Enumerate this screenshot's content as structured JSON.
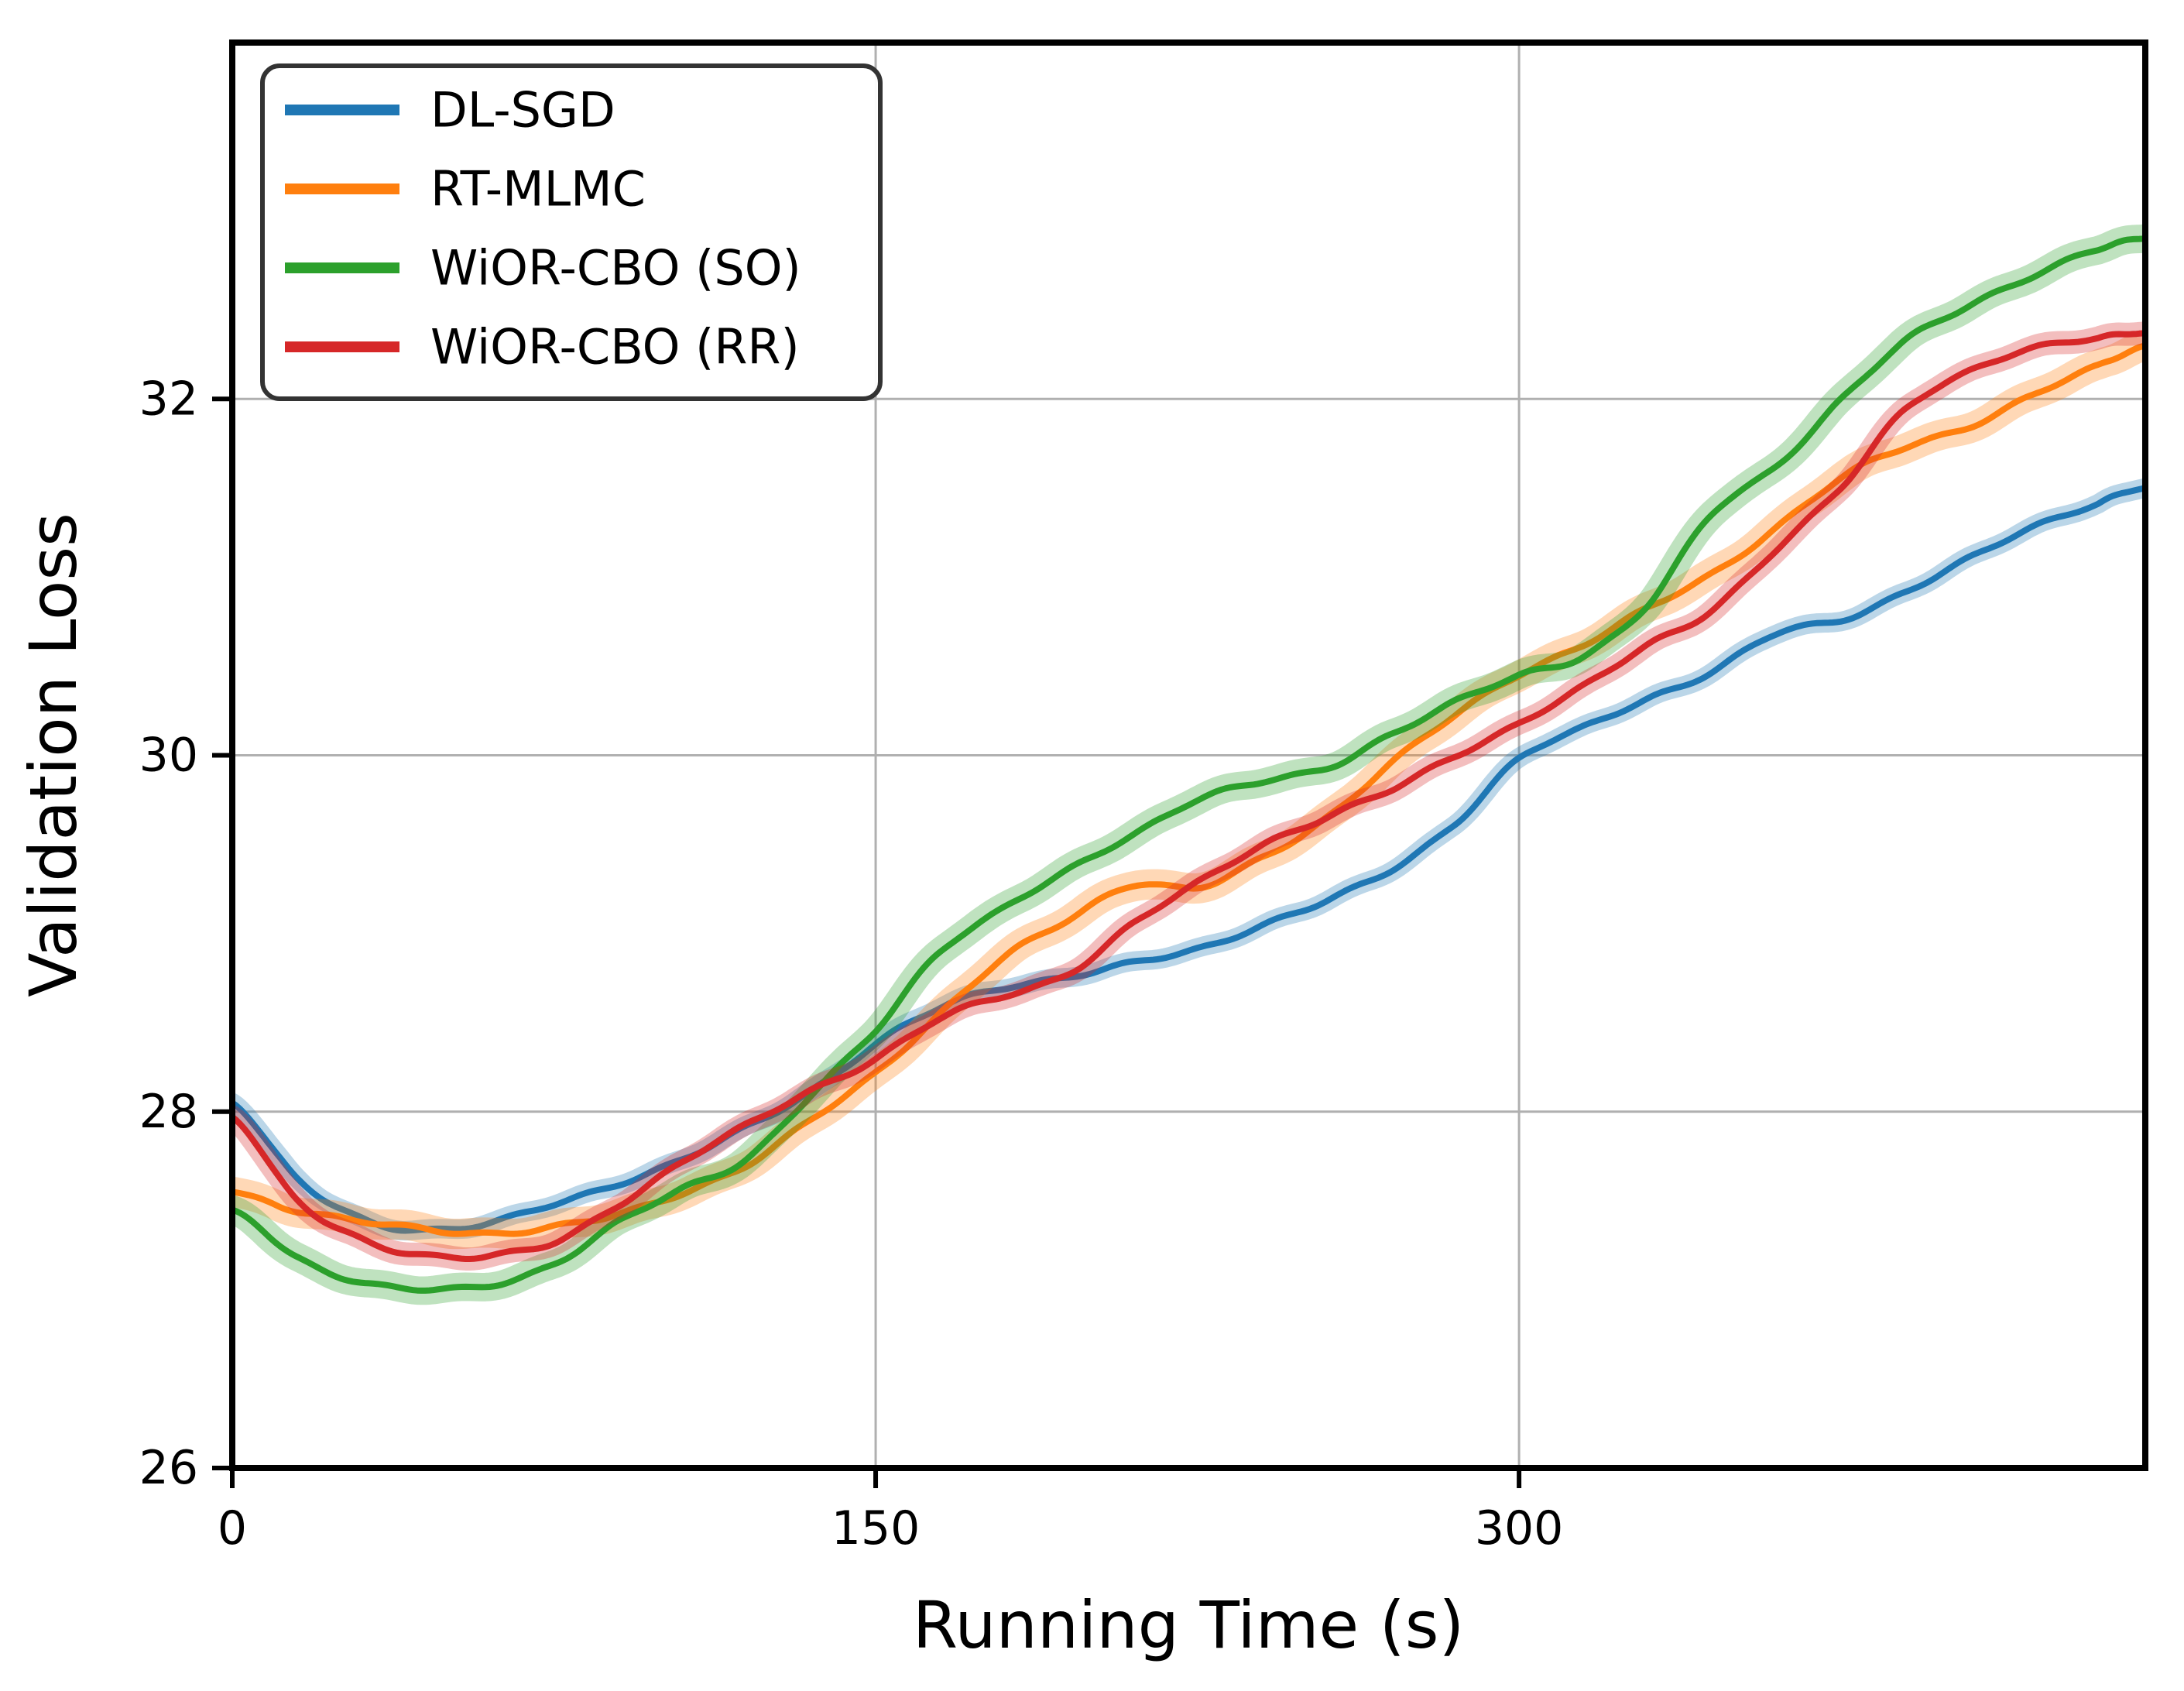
{
  "page": {
    "background": "#ffffff",
    "border_color": "#000000",
    "grid_color": "#b0b0b0"
  },
  "chart_data": {
    "type": "line",
    "title": "",
    "xlabel": "Running Time (s)",
    "ylabel": "Validation Loss",
    "xlim": [
      0,
      446
    ],
    "ylim": [
      26,
      34
    ],
    "xticks": {
      "values": [
        0,
        150,
        300
      ],
      "labels": [
        "0",
        "150",
        "300"
      ]
    },
    "yticks": {
      "values": [
        26,
        28,
        30,
        32
      ],
      "labels": [
        "26",
        "28",
        "30",
        "32"
      ]
    },
    "grid": {
      "show": true,
      "color": "#b0b0b0",
      "x_values": [
        150,
        300
      ],
      "y_values": [
        28,
        30,
        32
      ]
    },
    "legend": {
      "position": "upper left",
      "border_color": "#333333",
      "background": "#ffffff"
    },
    "x": [
      0,
      15,
      30,
      45,
      60,
      75,
      90,
      105,
      120,
      135,
      150,
      165,
      180,
      195,
      210,
      225,
      240,
      255,
      270,
      285,
      300,
      315,
      330,
      345,
      360,
      375,
      390,
      405,
      420,
      435,
      446
    ],
    "series": [
      {
        "name": "DL-SGD",
        "color": "#1f77b4",
        "band_halfwidth": 0.055,
        "values": [
          28.05,
          27.62,
          27.4,
          27.34,
          27.37,
          27.48,
          27.6,
          27.73,
          27.91,
          28.12,
          28.38,
          28.58,
          28.7,
          28.76,
          28.83,
          28.91,
          29.05,
          29.18,
          29.35,
          29.62,
          29.98,
          30.15,
          30.32,
          30.47,
          30.68,
          30.76,
          30.92,
          31.1,
          31.28,
          31.42,
          31.5
        ]
      },
      {
        "name": "RT-MLMC",
        "color": "#ff7f0e",
        "band_halfwidth": 0.085,
        "values": [
          27.55,
          27.45,
          27.38,
          27.34,
          27.32,
          27.35,
          27.42,
          27.55,
          27.7,
          27.95,
          28.22,
          28.55,
          28.86,
          29.08,
          29.28,
          29.25,
          29.42,
          29.65,
          29.95,
          30.22,
          30.46,
          30.62,
          30.82,
          31.02,
          31.28,
          31.55,
          31.73,
          31.85,
          32.02,
          32.18,
          32.3
        ]
      },
      {
        "name": "WiOR-CBO (SO)",
        "color": "#2ca02c",
        "band_halfwidth": 0.08,
        "values": [
          27.45,
          27.18,
          27.05,
          27.0,
          27.02,
          27.15,
          27.38,
          27.56,
          27.74,
          28.1,
          28.45,
          28.9,
          29.15,
          29.35,
          29.55,
          29.76,
          29.85,
          29.92,
          30.12,
          30.3,
          30.44,
          30.56,
          30.85,
          31.35,
          31.62,
          32.0,
          32.32,
          32.52,
          32.7,
          32.84,
          32.9
        ]
      },
      {
        "name": "WiOR-CBO (RR)",
        "color": "#d62728",
        "band_halfwidth": 0.065,
        "values": [
          27.97,
          27.5,
          27.28,
          27.2,
          27.19,
          27.26,
          27.48,
          27.72,
          27.92,
          28.12,
          28.3,
          28.52,
          28.65,
          28.78,
          29.05,
          29.28,
          29.5,
          29.65,
          29.8,
          30.0,
          30.18,
          30.38,
          30.62,
          30.82,
          31.15,
          31.5,
          31.95,
          32.15,
          32.28,
          32.35,
          32.37
        ]
      }
    ]
  }
}
